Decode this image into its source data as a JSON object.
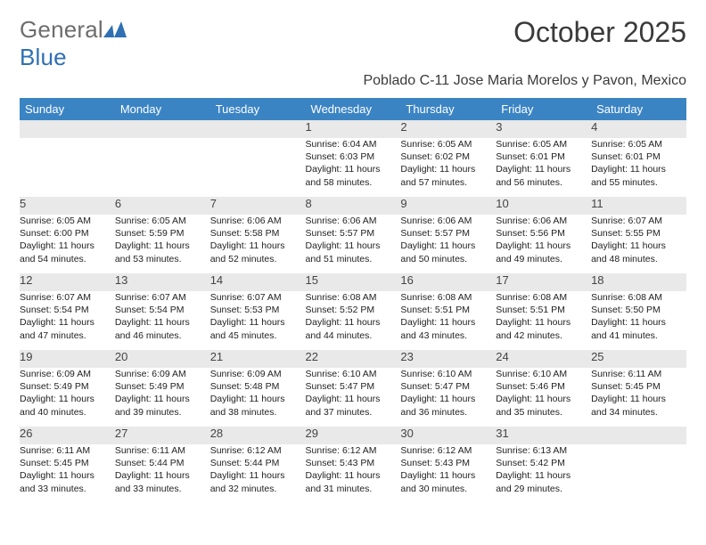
{
  "brand": {
    "part1": "General",
    "part2": "Blue"
  },
  "title": "October 2025",
  "subtitle": "Poblado C-11 Jose Maria Morelos y Pavon, Mexico",
  "colors": {
    "header_bg": "#3b84c4",
    "header_text": "#ffffff",
    "daynum_bg": "#e9e9e9",
    "page_bg": "#ffffff",
    "text": "#222222",
    "brand_gray": "#6d6d6d",
    "brand_blue": "#2f6fb3"
  },
  "day_headers": [
    "Sunday",
    "Monday",
    "Tuesday",
    "Wednesday",
    "Thursday",
    "Friday",
    "Saturday"
  ],
  "weeks": [
    {
      "nums": [
        "",
        "",
        "",
        "1",
        "2",
        "3",
        "4"
      ],
      "details": [
        [
          "",
          "",
          "",
          ""
        ],
        [
          "",
          "",
          "",
          ""
        ],
        [
          "",
          "",
          "",
          ""
        ],
        [
          "Sunrise: 6:04 AM",
          "Sunset: 6:03 PM",
          "Daylight: 11 hours",
          "and 58 minutes."
        ],
        [
          "Sunrise: 6:05 AM",
          "Sunset: 6:02 PM",
          "Daylight: 11 hours",
          "and 57 minutes."
        ],
        [
          "Sunrise: 6:05 AM",
          "Sunset: 6:01 PM",
          "Daylight: 11 hours",
          "and 56 minutes."
        ],
        [
          "Sunrise: 6:05 AM",
          "Sunset: 6:01 PM",
          "Daylight: 11 hours",
          "and 55 minutes."
        ]
      ]
    },
    {
      "nums": [
        "5",
        "6",
        "7",
        "8",
        "9",
        "10",
        "11"
      ],
      "details": [
        [
          "Sunrise: 6:05 AM",
          "Sunset: 6:00 PM",
          "Daylight: 11 hours",
          "and 54 minutes."
        ],
        [
          "Sunrise: 6:05 AM",
          "Sunset: 5:59 PM",
          "Daylight: 11 hours",
          "and 53 minutes."
        ],
        [
          "Sunrise: 6:06 AM",
          "Sunset: 5:58 PM",
          "Daylight: 11 hours",
          "and 52 minutes."
        ],
        [
          "Sunrise: 6:06 AM",
          "Sunset: 5:57 PM",
          "Daylight: 11 hours",
          "and 51 minutes."
        ],
        [
          "Sunrise: 6:06 AM",
          "Sunset: 5:57 PM",
          "Daylight: 11 hours",
          "and 50 minutes."
        ],
        [
          "Sunrise: 6:06 AM",
          "Sunset: 5:56 PM",
          "Daylight: 11 hours",
          "and 49 minutes."
        ],
        [
          "Sunrise: 6:07 AM",
          "Sunset: 5:55 PM",
          "Daylight: 11 hours",
          "and 48 minutes."
        ]
      ]
    },
    {
      "nums": [
        "12",
        "13",
        "14",
        "15",
        "16",
        "17",
        "18"
      ],
      "details": [
        [
          "Sunrise: 6:07 AM",
          "Sunset: 5:54 PM",
          "Daylight: 11 hours",
          "and 47 minutes."
        ],
        [
          "Sunrise: 6:07 AM",
          "Sunset: 5:54 PM",
          "Daylight: 11 hours",
          "and 46 minutes."
        ],
        [
          "Sunrise: 6:07 AM",
          "Sunset: 5:53 PM",
          "Daylight: 11 hours",
          "and 45 minutes."
        ],
        [
          "Sunrise: 6:08 AM",
          "Sunset: 5:52 PM",
          "Daylight: 11 hours",
          "and 44 minutes."
        ],
        [
          "Sunrise: 6:08 AM",
          "Sunset: 5:51 PM",
          "Daylight: 11 hours",
          "and 43 minutes."
        ],
        [
          "Sunrise: 6:08 AM",
          "Sunset: 5:51 PM",
          "Daylight: 11 hours",
          "and 42 minutes."
        ],
        [
          "Sunrise: 6:08 AM",
          "Sunset: 5:50 PM",
          "Daylight: 11 hours",
          "and 41 minutes."
        ]
      ]
    },
    {
      "nums": [
        "19",
        "20",
        "21",
        "22",
        "23",
        "24",
        "25"
      ],
      "details": [
        [
          "Sunrise: 6:09 AM",
          "Sunset: 5:49 PM",
          "Daylight: 11 hours",
          "and 40 minutes."
        ],
        [
          "Sunrise: 6:09 AM",
          "Sunset: 5:49 PM",
          "Daylight: 11 hours",
          "and 39 minutes."
        ],
        [
          "Sunrise: 6:09 AM",
          "Sunset: 5:48 PM",
          "Daylight: 11 hours",
          "and 38 minutes."
        ],
        [
          "Sunrise: 6:10 AM",
          "Sunset: 5:47 PM",
          "Daylight: 11 hours",
          "and 37 minutes."
        ],
        [
          "Sunrise: 6:10 AM",
          "Sunset: 5:47 PM",
          "Daylight: 11 hours",
          "and 36 minutes."
        ],
        [
          "Sunrise: 6:10 AM",
          "Sunset: 5:46 PM",
          "Daylight: 11 hours",
          "and 35 minutes."
        ],
        [
          "Sunrise: 6:11 AM",
          "Sunset: 5:45 PM",
          "Daylight: 11 hours",
          "and 34 minutes."
        ]
      ]
    },
    {
      "nums": [
        "26",
        "27",
        "28",
        "29",
        "30",
        "31",
        ""
      ],
      "details": [
        [
          "Sunrise: 6:11 AM",
          "Sunset: 5:45 PM",
          "Daylight: 11 hours",
          "and 33 minutes."
        ],
        [
          "Sunrise: 6:11 AM",
          "Sunset: 5:44 PM",
          "Daylight: 11 hours",
          "and 33 minutes."
        ],
        [
          "Sunrise: 6:12 AM",
          "Sunset: 5:44 PM",
          "Daylight: 11 hours",
          "and 32 minutes."
        ],
        [
          "Sunrise: 6:12 AM",
          "Sunset: 5:43 PM",
          "Daylight: 11 hours",
          "and 31 minutes."
        ],
        [
          "Sunrise: 6:12 AM",
          "Sunset: 5:43 PM",
          "Daylight: 11 hours",
          "and 30 minutes."
        ],
        [
          "Sunrise: 6:13 AM",
          "Sunset: 5:42 PM",
          "Daylight: 11 hours",
          "and 29 minutes."
        ],
        [
          "",
          "",
          "",
          ""
        ]
      ]
    }
  ]
}
